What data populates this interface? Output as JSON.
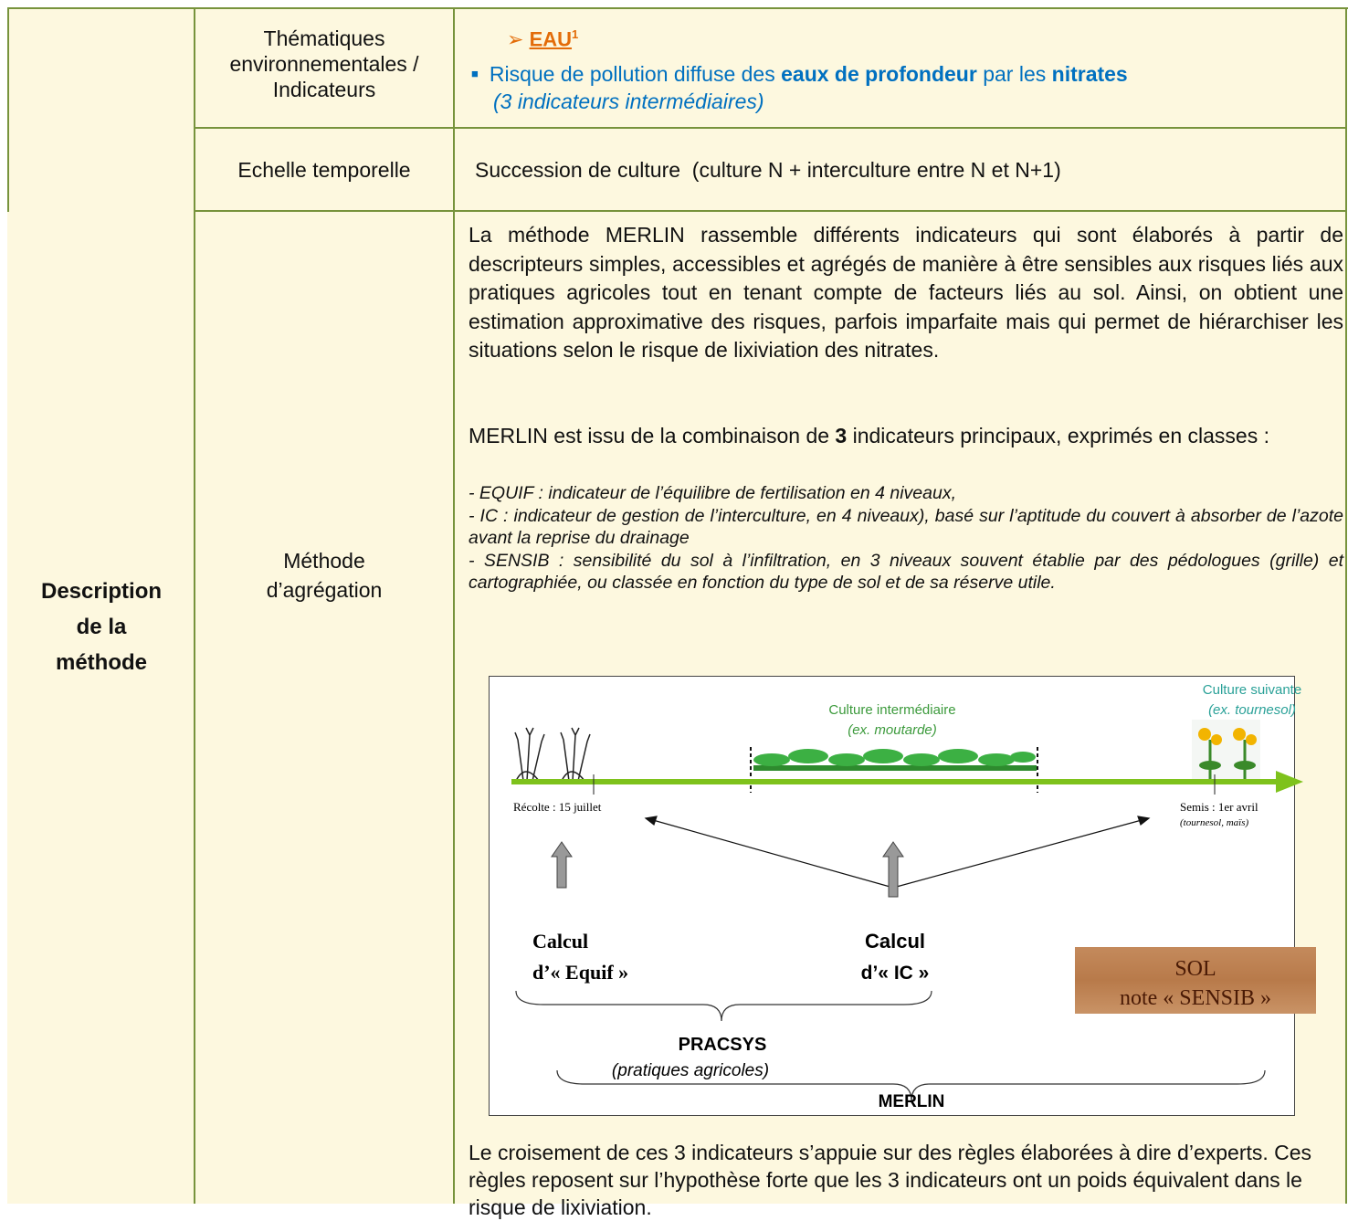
{
  "table": {
    "row_header": "Description de la méthode",
    "rows": [
      {
        "label": "Thématiques environnementales / Indicateurs",
        "theme": "EAU",
        "theme_note": "1",
        "bullet": [
          "Risque de pollution diffuse des ",
          "eaux de profondeur",
          " par les ",
          "nitrates"
        ],
        "bullet_note": "(3 indicateurs intermédiaires)"
      },
      {
        "label": "Echelle temporelle",
        "content": "Succession de culture  (culture N + interculture entre N et N+1)"
      },
      {
        "label": "Méthode d’agrégation",
        "paragraph": "La méthode MERLIN rassemble différents indicateurs qui sont élaborés à partir de descripteurs simples, accessibles et agrégés de manière à être sensibles aux risques liés aux pratiques agricoles tout en tenant compte de facteurs liés au sol. Ainsi, on obtient une estimation approximative des risques, parfois imparfaite mais qui permet de hiérarchiser les situations selon le risque de lixiviation des nitrates.",
        "combination": [
          "MERLIN est issu de la combinaison de ",
          "3",
          " indicateurs principaux, exprimés en classes :"
        ],
        "list": [
          "- EQUIF : indicateur de l’équilibre de fertilisation en 4 niveaux,",
          "- IC : indicateur de gestion de l’interculture, en 4 niveaux), basé sur l’aptitude du couvert à absorber de l’azote avant la reprise du drainage",
          "- SENSIB : sensibilité du sol à l’infiltration, en 3 niveaux souvent établie par des pédologues (grille) et cartographiée, ou classée en fonction du type de sol et de sa réserve utile."
        ],
        "diagram": {
          "next_crop": "Culture suivante",
          "next_crop_example": "(ex. tournesol)",
          "cover_crop": "Culture intermédiaire",
          "cover_crop_example": "(ex. moutarde)",
          "harvest": "Récolte : 15 juillet",
          "sowing": "Semis : 1er avril",
          "sowing_crops": "(tournesol, maïs)",
          "calc_equif": [
            "Calcul",
            "d’« Equif »"
          ],
          "calc_ic": [
            "Calcul",
            "d’« IC »"
          ],
          "pracsys": "PRACSYS",
          "pracsys_note": "(pratiques agricoles)",
          "merlin": "MERLIN",
          "soil": [
            "SOL",
            "note « SENSIB »"
          ]
        },
        "closing": "Le croisement de ces 3 indicateurs s’appuie sur des règles élaborées à dire d’experts. Ces règles reposent sur l’hypothèse forte que les 3 indicateurs ont un poids équivalent dans le risque de lixiviation."
      }
    ]
  }
}
